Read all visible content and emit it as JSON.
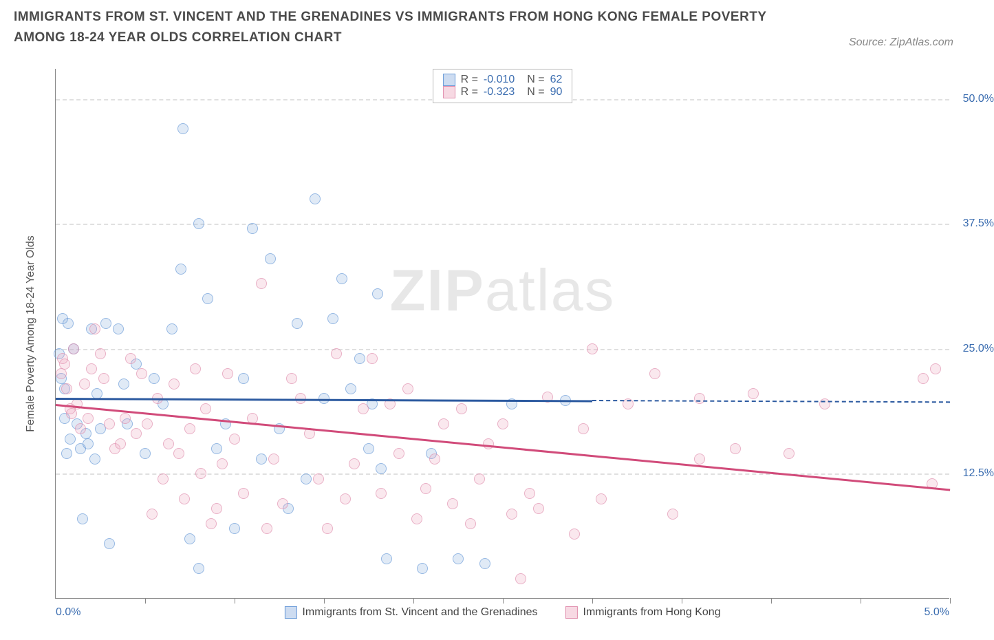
{
  "title": "IMMIGRANTS FROM ST. VINCENT AND THE GRENADINES VS IMMIGRANTS FROM HONG KONG FEMALE POVERTY AMONG 18-24 YEAR OLDS CORRELATION CHART",
  "source": "Source: ZipAtlas.com",
  "watermark_a": "ZIP",
  "watermark_b": "atlas",
  "chart": {
    "type": "scatter",
    "ylabel": "Female Poverty Among 18-24 Year Olds",
    "xlim": [
      0.0,
      5.0
    ],
    "ylim": [
      0.0,
      53.0
    ],
    "x_axis_labels": {
      "min": "0.0%",
      "max": "5.0%"
    },
    "yticks": [
      12.5,
      25.0,
      37.5,
      50.0
    ],
    "ytick_labels": [
      "12.5%",
      "25.0%",
      "37.5%",
      "50.0%"
    ],
    "xticks": [
      0.5,
      1.0,
      1.5,
      2.0,
      2.5,
      3.0,
      3.5,
      4.0,
      4.5,
      5.0
    ],
    "grid_color": "#e0e0e0",
    "axis_color": "#888888",
    "background_color": "#ffffff",
    "series": [
      {
        "name": "Immigrants from St. Vincent and the Grenadines",
        "marker_fill": "rgba(129,168,219,0.35)",
        "marker_stroke": "#6a9bd8",
        "trend_color": "#2c5aa0",
        "R": "-0.010",
        "N": "62",
        "trend": {
          "x1": 0.0,
          "y1": 20.1,
          "x2_solid": 3.0,
          "x2_dash": 5.0,
          "y2": 19.7
        },
        "points": [
          [
            0.02,
            24.5
          ],
          [
            0.03,
            22.0
          ],
          [
            0.04,
            28.0
          ],
          [
            0.05,
            21.0
          ],
          [
            0.05,
            18.0
          ],
          [
            0.06,
            14.5
          ],
          [
            0.07,
            27.5
          ],
          [
            0.08,
            16.0
          ],
          [
            0.1,
            25.0
          ],
          [
            0.12,
            17.5
          ],
          [
            0.14,
            15.0
          ],
          [
            0.15,
            8.0
          ],
          [
            0.17,
            16.5
          ],
          [
            0.18,
            15.5
          ],
          [
            0.2,
            27.0
          ],
          [
            0.22,
            14.0
          ],
          [
            0.23,
            20.5
          ],
          [
            0.25,
            17.0
          ],
          [
            0.28,
            27.5
          ],
          [
            0.3,
            5.5
          ],
          [
            0.35,
            27.0
          ],
          [
            0.38,
            21.5
          ],
          [
            0.4,
            17.5
          ],
          [
            0.45,
            23.5
          ],
          [
            0.5,
            14.5
          ],
          [
            0.55,
            22.0
          ],
          [
            0.6,
            19.5
          ],
          [
            0.65,
            27.0
          ],
          [
            0.7,
            33.0
          ],
          [
            0.71,
            47.0
          ],
          [
            0.75,
            6.0
          ],
          [
            0.8,
            3.0
          ],
          [
            0.8,
            37.5
          ],
          [
            0.85,
            30.0
          ],
          [
            0.9,
            15.0
          ],
          [
            0.95,
            17.5
          ],
          [
            1.0,
            7.0
          ],
          [
            1.05,
            22.0
          ],
          [
            1.1,
            37.0
          ],
          [
            1.15,
            14.0
          ],
          [
            1.2,
            34.0
          ],
          [
            1.25,
            17.0
          ],
          [
            1.3,
            9.0
          ],
          [
            1.35,
            27.5
          ],
          [
            1.4,
            12.0
          ],
          [
            1.45,
            40.0
          ],
          [
            1.5,
            20.0
          ],
          [
            1.55,
            28.0
          ],
          [
            1.6,
            32.0
          ],
          [
            1.65,
            21.0
          ],
          [
            1.7,
            24.0
          ],
          [
            1.75,
            15.0
          ],
          [
            1.77,
            19.5
          ],
          [
            1.8,
            30.5
          ],
          [
            1.82,
            13.0
          ],
          [
            1.85,
            4.0
          ],
          [
            2.05,
            3.0
          ],
          [
            2.1,
            14.5
          ],
          [
            2.25,
            4.0
          ],
          [
            2.4,
            3.5
          ],
          [
            2.55,
            19.5
          ],
          [
            2.85,
            19.8
          ]
        ]
      },
      {
        "name": "Immigrants from Hong Kong",
        "marker_fill": "rgba(235,160,185,0.35)",
        "marker_stroke": "#e08fae",
        "trend_color": "#d14b7a",
        "R": "-0.323",
        "N": "90",
        "trend": {
          "x1": 0.0,
          "y1": 19.5,
          "x2_solid": 5.0,
          "x2_dash": 5.0,
          "y2": 11.0
        },
        "points": [
          [
            0.03,
            22.5
          ],
          [
            0.04,
            24.0
          ],
          [
            0.05,
            23.5
          ],
          [
            0.06,
            21.0
          ],
          [
            0.08,
            19.0
          ],
          [
            0.09,
            18.5
          ],
          [
            0.1,
            25.0
          ],
          [
            0.12,
            19.5
          ],
          [
            0.14,
            17.0
          ],
          [
            0.16,
            21.5
          ],
          [
            0.18,
            18.0
          ],
          [
            0.2,
            23.0
          ],
          [
            0.22,
            27.0
          ],
          [
            0.25,
            24.5
          ],
          [
            0.27,
            22.0
          ],
          [
            0.3,
            17.5
          ],
          [
            0.33,
            15.0
          ],
          [
            0.36,
            15.5
          ],
          [
            0.39,
            18.0
          ],
          [
            0.42,
            24.0
          ],
          [
            0.45,
            16.5
          ],
          [
            0.48,
            22.5
          ],
          [
            0.51,
            17.5
          ],
          [
            0.54,
            8.5
          ],
          [
            0.57,
            20.0
          ],
          [
            0.6,
            12.0
          ],
          [
            0.63,
            15.5
          ],
          [
            0.66,
            21.5
          ],
          [
            0.69,
            14.5
          ],
          [
            0.72,
            10.0
          ],
          [
            0.75,
            17.0
          ],
          [
            0.78,
            23.0
          ],
          [
            0.81,
            12.5
          ],
          [
            0.84,
            19.0
          ],
          [
            0.87,
            7.5
          ],
          [
            0.9,
            9.0
          ],
          [
            0.93,
            13.5
          ],
          [
            0.96,
            22.5
          ],
          [
            1.0,
            16.0
          ],
          [
            1.05,
            10.5
          ],
          [
            1.1,
            18.0
          ],
          [
            1.15,
            31.5
          ],
          [
            1.18,
            7.0
          ],
          [
            1.22,
            14.0
          ],
          [
            1.27,
            9.5
          ],
          [
            1.32,
            22.0
          ],
          [
            1.37,
            20.0
          ],
          [
            1.42,
            16.5
          ],
          [
            1.47,
            12.0
          ],
          [
            1.52,
            7.0
          ],
          [
            1.57,
            24.5
          ],
          [
            1.62,
            10.0
          ],
          [
            1.67,
            13.5
          ],
          [
            1.72,
            19.0
          ],
          [
            1.77,
            24.0
          ],
          [
            1.82,
            10.5
          ],
          [
            1.87,
            19.5
          ],
          [
            1.92,
            14.5
          ],
          [
            1.97,
            21.0
          ],
          [
            2.02,
            8.0
          ],
          [
            2.07,
            11.0
          ],
          [
            2.12,
            14.0
          ],
          [
            2.17,
            17.5
          ],
          [
            2.22,
            9.5
          ],
          [
            2.27,
            19.0
          ],
          [
            2.32,
            7.5
          ],
          [
            2.37,
            12.0
          ],
          [
            2.42,
            15.5
          ],
          [
            2.5,
            17.5
          ],
          [
            2.55,
            8.5
          ],
          [
            2.6,
            2.0
          ],
          [
            2.65,
            10.5
          ],
          [
            2.7,
            9.0
          ],
          [
            2.75,
            20.2
          ],
          [
            2.9,
            6.5
          ],
          [
            2.95,
            17.0
          ],
          [
            3.0,
            25.0
          ],
          [
            3.05,
            10.0
          ],
          [
            3.2,
            19.5
          ],
          [
            3.35,
            22.5
          ],
          [
            3.45,
            8.5
          ],
          [
            3.6,
            20.0
          ],
          [
            3.6,
            14.0
          ],
          [
            3.8,
            15.0
          ],
          [
            3.9,
            20.5
          ],
          [
            4.1,
            14.5
          ],
          [
            4.3,
            19.5
          ],
          [
            4.85,
            22.0
          ],
          [
            4.9,
            11.5
          ],
          [
            4.92,
            23.0
          ]
        ]
      }
    ],
    "legend_top": {
      "r_label": "R =",
      "n_label": "N ="
    }
  }
}
